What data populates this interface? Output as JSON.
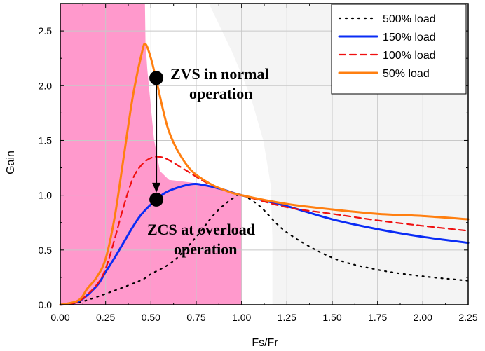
{
  "chart_data": {
    "type": "line",
    "title": "",
    "xlabel": "Fs/Fr",
    "ylabel": "Gain",
    "xlim": [
      0,
      2.25
    ],
    "ylim": [
      0,
      2.75
    ],
    "grid": true,
    "legend_position": "top-right",
    "x_ticks": [
      "0.00",
      "0.25",
      "0.50",
      "0.75",
      "1.00",
      "1.25",
      "1.50",
      "1.75",
      "2.00",
      "2.25"
    ],
    "y_ticks": [
      "0.0",
      "0.5",
      "1.0",
      "1.5",
      "2.0",
      "2.5"
    ],
    "series": [
      {
        "name": "500% load",
        "color": "#000000",
        "style": "dotted",
        "x": [
          0,
          0.1,
          0.25,
          0.44,
          0.5,
          0.625,
          0.75,
          0.857,
          0.95,
          1.0,
          1.1,
          1.25,
          1.5,
          1.75,
          2.0,
          2.25
        ],
        "y": [
          0,
          0.02,
          0.1,
          0.22,
          0.28,
          0.4,
          0.62,
          0.84,
          0.97,
          1.0,
          0.9,
          0.66,
          0.43,
          0.32,
          0.26,
          0.22
        ]
      },
      {
        "name": "150% load",
        "color": "#0a2cf5",
        "style": "solid",
        "x": [
          0,
          0.1,
          0.2,
          0.25,
          0.3,
          0.35,
          0.4,
          0.45,
          0.53,
          0.6,
          0.72,
          0.8,
          0.9,
          1.0,
          1.25,
          1.5,
          1.75,
          2.0,
          2.25
        ],
        "y": [
          0,
          0.03,
          0.17,
          0.3,
          0.43,
          0.57,
          0.71,
          0.83,
          0.96,
          1.04,
          1.1,
          1.09,
          1.05,
          1.0,
          0.9,
          0.78,
          0.69,
          0.62,
          0.565
        ]
      },
      {
        "name": "100% load",
        "color": "#f01010",
        "style": "dashed",
        "x": [
          0,
          0.1,
          0.2,
          0.25,
          0.3,
          0.35,
          0.4,
          0.45,
          0.5,
          0.55,
          0.6,
          0.7,
          0.8,
          0.9,
          1.0,
          1.25,
          1.5,
          1.75,
          2.0,
          2.25
        ],
        "y": [
          0,
          0.03,
          0.18,
          0.33,
          0.6,
          0.9,
          1.15,
          1.28,
          1.34,
          1.35,
          1.32,
          1.22,
          1.12,
          1.05,
          1.0,
          0.89,
          0.83,
          0.77,
          0.72,
          0.675
        ]
      },
      {
        "name": "50% load",
        "color": "#ff7f10",
        "style": "solid",
        "x": [
          0,
          0.1,
          0.15,
          0.2,
          0.25,
          0.3,
          0.35,
          0.4,
          0.45,
          0.47,
          0.5,
          0.53,
          0.6,
          0.7,
          0.8,
          0.9,
          1.0,
          1.25,
          1.5,
          1.75,
          2.0,
          2.25
        ],
        "y": [
          0,
          0.04,
          0.15,
          0.25,
          0.42,
          0.8,
          1.35,
          1.9,
          2.3,
          2.38,
          2.25,
          2.05,
          1.58,
          1.27,
          1.13,
          1.05,
          1.0,
          0.92,
          0.87,
          0.83,
          0.81,
          0.78
        ]
      }
    ],
    "regions": [
      {
        "color": "#f4f4f4",
        "x": [
          0.82,
          0.95,
          1.05,
          1.12,
          1.16,
          1.17,
          1.17,
          2.25,
          2.25
        ],
        "y": [
          2.75,
          2.3,
          1.9,
          1.5,
          1.1,
          0.6,
          0,
          0,
          2.75
        ]
      },
      {
        "color": "#ff99cc",
        "x": [
          0,
          0.467,
          0.47,
          0.48,
          0.5,
          0.517,
          0.55,
          0.6,
          0.7,
          0.8,
          0.9,
          1.0,
          1.0,
          0
        ],
        "y": [
          2.75,
          2.75,
          2.4,
          2.15,
          1.8,
          1.51,
          1.22,
          1.14,
          1.12,
          1.1,
          1.05,
          1.0,
          0,
          0
        ]
      }
    ],
    "annotations": {
      "zvs_line1": "ZVS in normal",
      "zvs_line2": "operation",
      "zcs_line1": "ZCS at overload",
      "zcs_line2": "operation",
      "zvs_point": [
        0.53,
        2.07
      ],
      "zcs_point": [
        0.53,
        0.96
      ]
    }
  }
}
